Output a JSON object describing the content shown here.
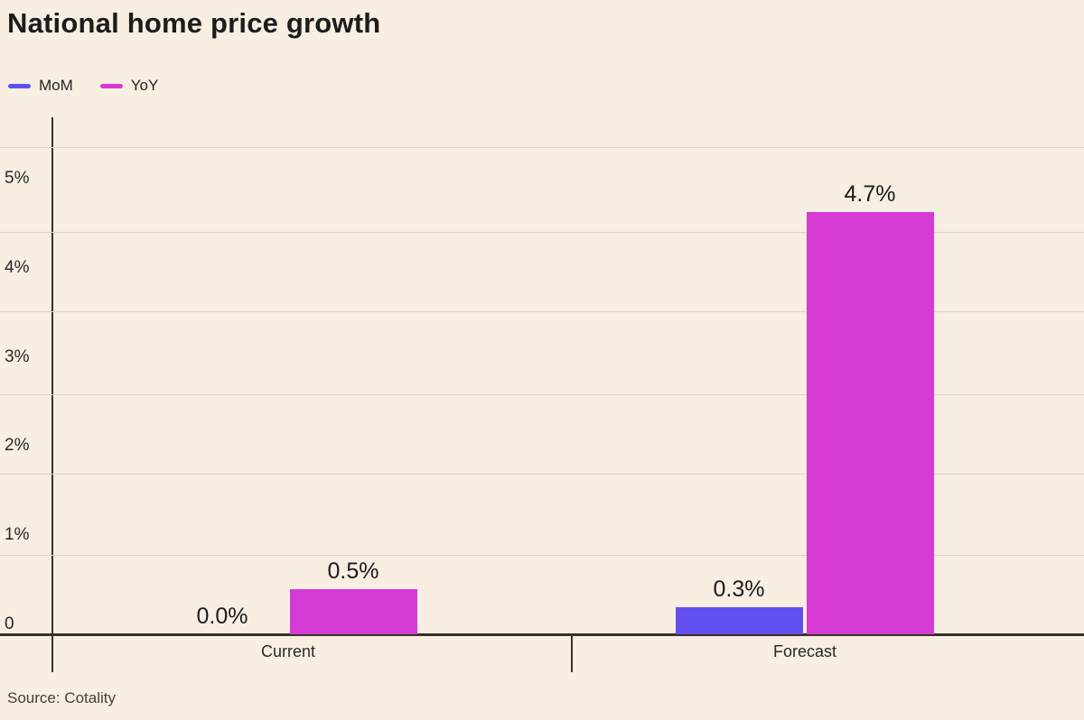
{
  "title": "National home price growth",
  "source": "Source: Cotality",
  "legend": [
    {
      "label": "MoM",
      "color": "#6150ee"
    },
    {
      "label": "YoY",
      "color": "#d53ad2"
    }
  ],
  "colors": {
    "background": "#f8eee2",
    "axis": "#3a3128",
    "gridline": "#dcd3c6",
    "mom_bar": "#6150ee",
    "yoy_bar": "#d53ad2",
    "text": "#1c1c1c"
  },
  "chart_data": {
    "type": "bar",
    "title": "National home price growth",
    "categories": [
      "Current",
      "Forecast"
    ],
    "series": [
      {
        "name": "MoM",
        "color": "#6150ee",
        "values": [
          0.0,
          0.3
        ],
        "labels": [
          "0.0%",
          "0.3%"
        ]
      },
      {
        "name": "YoY",
        "color": "#d53ad2",
        "values": [
          0.5,
          4.7
        ],
        "labels": [
          "0.5%",
          "4.7%"
        ]
      }
    ],
    "xlabel": "",
    "ylabel": "",
    "y_ticks": [
      "5%",
      "4%",
      "3%",
      "2%",
      "1%",
      "0"
    ],
    "ylim": [
      0,
      5.5
    ],
    "grid": true,
    "legend_position": "top-left"
  }
}
